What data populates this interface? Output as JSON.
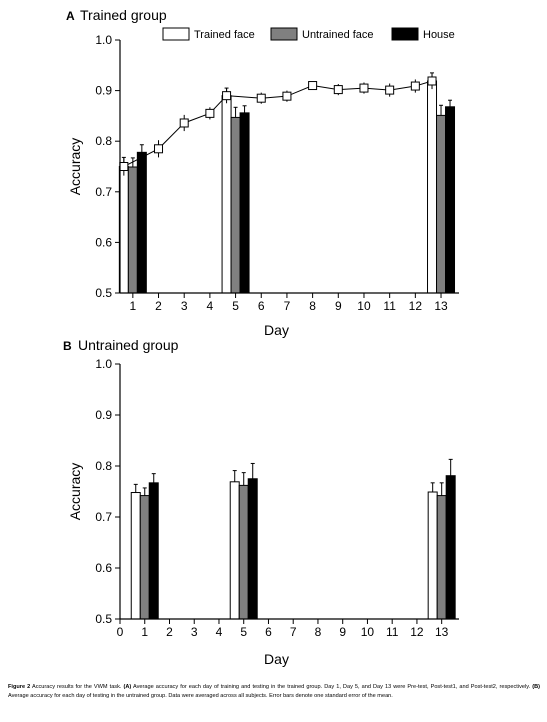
{
  "chart_data": [
    {
      "type": "bar",
      "panel_letter": "A",
      "title": "Trained group",
      "xlabel": "Day",
      "ylabel": "Accuracy",
      "ylim": [
        0.5,
        1.0
      ],
      "xlim": [
        0.5,
        13.7
      ],
      "yticks": [
        0.5,
        0.6,
        0.7,
        0.8,
        0.9,
        1.0
      ],
      "xticks": [
        1,
        2,
        3,
        4,
        5,
        6,
        7,
        8,
        9,
        10,
        11,
        12,
        13
      ],
      "xtick_labels": [
        "1",
        "2",
        "3",
        "4",
        "5",
        "6",
        "7",
        "8",
        "9",
        "10",
        "11",
        "12",
        "13"
      ],
      "legend": {
        "placement": "top",
        "entries": [
          "Trained face",
          "Untrained face",
          "House"
        ]
      },
      "series": [
        {
          "name": "Trained face",
          "color": "#ffffff",
          "days": [
            1,
            5,
            13
          ],
          "values": [
            0.75,
            0.89,
            0.919
          ],
          "errors": [
            0.018,
            0.015,
            0.016
          ]
        },
        {
          "name": "Untrained face",
          "color": "#808080",
          "days": [
            1,
            5,
            13
          ],
          "values": [
            0.749,
            0.847,
            0.851
          ],
          "errors": [
            0.018,
            0.02,
            0.02
          ]
        },
        {
          "name": "House",
          "color": "#000000",
          "days": [
            1,
            5,
            13
          ],
          "values": [
            0.778,
            0.856,
            0.868
          ],
          "errors": [
            0.015,
            0.014,
            0.013
          ]
        }
      ],
      "training_line": {
        "name": "Trained face",
        "points": [
          {
            "x": 1,
            "y": 0.75
          },
          {
            "x": 2,
            "y": 0.785
          },
          {
            "x": 3,
            "y": 0.836
          },
          {
            "x": 4,
            "y": 0.855
          },
          {
            "x": 5,
            "y": 0.89
          },
          {
            "x": 6,
            "y": 0.885
          },
          {
            "x": 7,
            "y": 0.889
          },
          {
            "x": 8,
            "y": 0.91
          },
          {
            "x": 9,
            "y": 0.902
          },
          {
            "x": 10,
            "y": 0.905
          },
          {
            "x": 11,
            "y": 0.901
          },
          {
            "x": 12,
            "y": 0.909
          },
          {
            "x": 13,
            "y": 0.919
          }
        ],
        "errors": [
          0.018,
          0.017,
          0.016,
          0.012,
          0.015,
          0.011,
          0.011,
          0.008,
          0.011,
          0.011,
          0.013,
          0.013,
          0.016
        ]
      }
    },
    {
      "type": "bar",
      "panel_letter": "B",
      "title": "Untrained group",
      "xlabel": "Day",
      "ylabel": "Accuracy",
      "ylim": [
        0.5,
        1.0
      ],
      "xlim": [
        0,
        13.7
      ],
      "yticks": [
        0.5,
        0.6,
        0.7,
        0.8,
        0.9,
        1.0
      ],
      "xticks": [
        0,
        1,
        2,
        3,
        4,
        5,
        6,
        7,
        8,
        9,
        10,
        11,
        12,
        13
      ],
      "xtick_labels": [
        "0",
        "1",
        "2",
        "3",
        "4",
        "5",
        "6",
        "7",
        "8",
        "9",
        "10",
        "11",
        "12",
        "13"
      ],
      "series": [
        {
          "name": "Trained face",
          "color": "#ffffff",
          "days": [
            1,
            5,
            13
          ],
          "values": [
            0.748,
            0.769,
            0.749
          ],
          "errors": [
            0.016,
            0.022,
            0.018
          ]
        },
        {
          "name": "Untrained face",
          "color": "#808080",
          "days": [
            1,
            5,
            13
          ],
          "values": [
            0.742,
            0.762,
            0.742
          ],
          "errors": [
            0.015,
            0.025,
            0.025
          ]
        },
        {
          "name": "House",
          "color": "#000000",
          "days": [
            1,
            5,
            13
          ],
          "values": [
            0.767,
            0.775,
            0.781
          ],
          "errors": [
            0.018,
            0.03,
            0.032
          ]
        }
      ]
    }
  ],
  "caption": {
    "label": "Figure 2",
    "text": " Accuracy results for the VWM task. ",
    "a_label": "(A)",
    "a_text": " Average accuracy for each day of training and testing in the trained group. Day 1, Day 5, and Day 13 were Pre-test, Post-test1, and Post-test2, respectively. ",
    "b_label": "(B)",
    "b_text": " Average accuracy for each day of testing in the untrained group. Data were averaged across all subjects. Error bars denote one standard error of the mean."
  }
}
